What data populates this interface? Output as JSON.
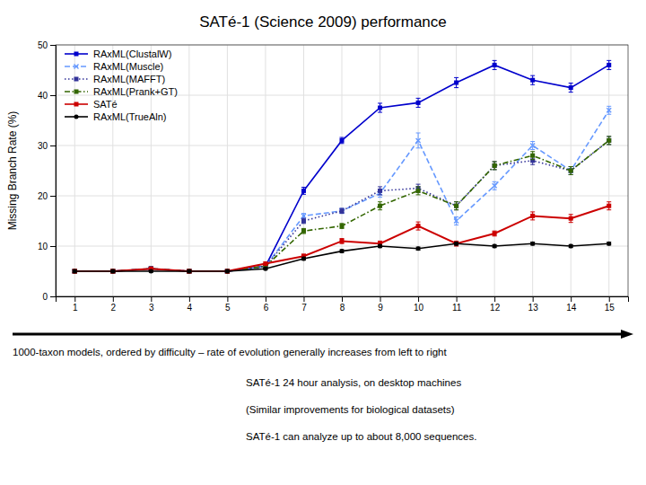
{
  "chart_data": {
    "type": "line",
    "title": "SATé-1 (Science 2009) performance",
    "ylabel": "Missing Branch Rate (%)",
    "x": [
      1,
      2,
      3,
      4,
      5,
      6,
      7,
      8,
      9,
      10,
      11,
      12,
      13,
      14,
      15
    ],
    "xlim": [
      0.5,
      15.5
    ],
    "xticks": [
      1,
      2,
      3,
      4,
      5,
      6,
      7,
      8,
      9,
      10,
      11,
      12,
      13,
      14,
      15
    ],
    "ylim": [
      0,
      50
    ],
    "yticks": [
      0,
      10,
      20,
      30,
      40,
      50
    ],
    "grid": true,
    "legend": "upper left",
    "series": [
      {
        "name": "RAxML(ClustalW)",
        "color": "#0000cc",
        "line_style": "solid",
        "marker": "square",
        "values": [
          5.0,
          5.0,
          5.5,
          5.0,
          5.0,
          6.0,
          21.0,
          31.0,
          37.5,
          38.5,
          42.5,
          46.0,
          43.0,
          41.5,
          46.0
        ],
        "errors": [
          0.3,
          0.3,
          0.4,
          0.3,
          0.3,
          0.3,
          0.7,
          0.6,
          0.9,
          0.9,
          1.0,
          0.9,
          0.9,
          0.9,
          0.9
        ]
      },
      {
        "name": "RAxML(Muscle)",
        "color": "#6699ff",
        "line_style": "dashed",
        "marker": "x",
        "values": [
          5.0,
          5.0,
          5.5,
          5.0,
          5.0,
          6.0,
          16.0,
          17.0,
          20.5,
          31.0,
          15.0,
          22.0,
          30.0,
          25.0,
          37.0
        ],
        "errors": [
          0.3,
          0.3,
          0.3,
          0.3,
          0.3,
          0.3,
          0.5,
          0.5,
          0.8,
          1.5,
          0.8,
          0.8,
          0.8,
          0.8,
          0.8
        ]
      },
      {
        "name": "RAxML(MAFFT)",
        "color": "#333399",
        "line_style": "dotted",
        "marker": "square",
        "values": [
          5.0,
          5.0,
          5.5,
          5.0,
          5.0,
          6.0,
          15.0,
          17.0,
          21.0,
          21.5,
          18.0,
          26.0,
          27.0,
          25.0,
          31.0
        ],
        "errors": [
          0.3,
          0.3,
          0.3,
          0.3,
          0.3,
          0.3,
          0.5,
          0.5,
          0.8,
          0.8,
          0.8,
          0.8,
          0.8,
          0.8,
          0.8
        ]
      },
      {
        "name": "RAxML(Prank+GT)",
        "color": "#336600",
        "line_style": "dashdot",
        "marker": "square",
        "values": [
          5.0,
          5.0,
          5.5,
          5.0,
          5.0,
          6.0,
          13.0,
          14.0,
          18.0,
          21.0,
          18.0,
          26.0,
          28.0,
          25.0,
          31.0
        ],
        "errors": [
          0.3,
          0.3,
          0.3,
          0.3,
          0.3,
          0.3,
          0.5,
          0.5,
          0.8,
          0.8,
          0.8,
          0.8,
          0.8,
          0.8,
          0.8
        ]
      },
      {
        "name": "SATé",
        "color": "#cc0000",
        "line_style": "solid",
        "marker": "square",
        "values": [
          5.0,
          5.0,
          5.5,
          5.0,
          5.0,
          6.5,
          8.0,
          11.0,
          10.5,
          14.0,
          10.5,
          12.5,
          16.0,
          15.5,
          18.0
        ],
        "errors": [
          0.3,
          0.3,
          0.3,
          0.3,
          0.3,
          0.3,
          0.4,
          0.5,
          0.5,
          0.8,
          0.5,
          0.5,
          0.8,
          0.8,
          0.8
        ]
      },
      {
        "name": "RAxML(TrueAln)",
        "color": "#000000",
        "line_style": "solid",
        "marker": "circle",
        "values": [
          5.0,
          5.0,
          5.0,
          5.0,
          5.0,
          5.5,
          7.5,
          9.0,
          10.0,
          9.5,
          10.5,
          10.0,
          10.5,
          10.0,
          10.5
        ],
        "errors": [
          0.2,
          0.2,
          0.2,
          0.2,
          0.2,
          0.2,
          0.3,
          0.3,
          0.3,
          0.3,
          0.3,
          0.3,
          0.3,
          0.3,
          0.3
        ]
      }
    ],
    "annotations": [
      "1000-taxon models, ordered by difficulty – rate of evolution generally increases from left to right",
      "SATé-1 24 hour analysis, on desktop machines",
      "(Similar improvements for biological datasets)",
      "SATé-1 can analyze up to about 8,000 sequences."
    ]
  }
}
